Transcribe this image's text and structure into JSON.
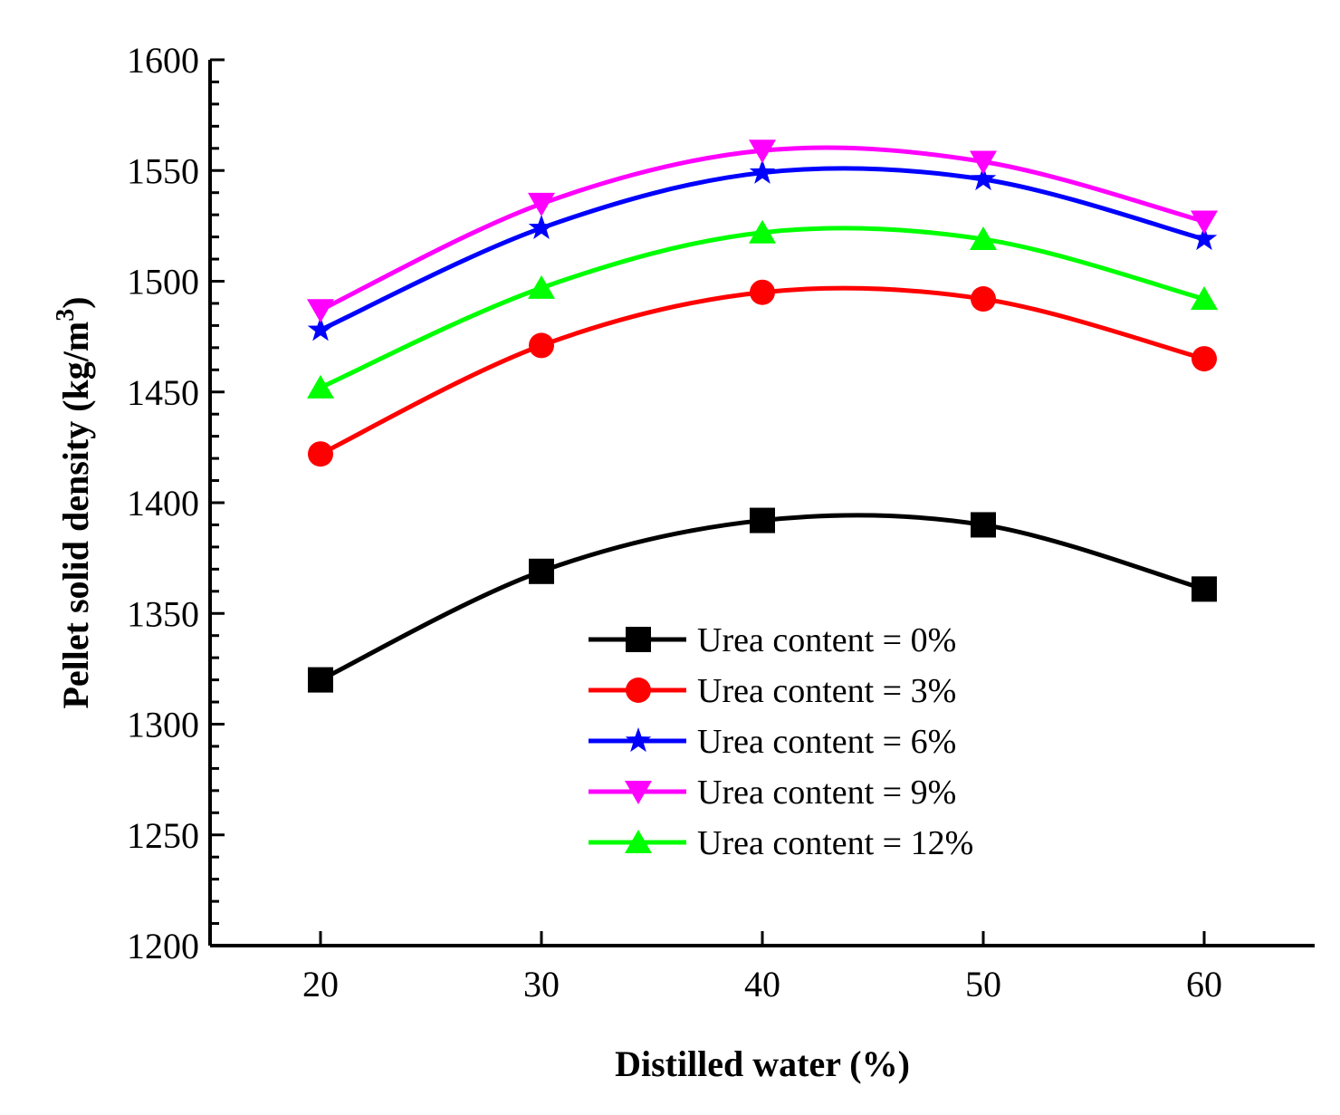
{
  "chart_data": {
    "type": "line",
    "title": "",
    "xlabel": "Distilled water (%)",
    "ylabel_main": "Pellet solid density (kg/m",
    "ylabel_sup": "3",
    "ylabel_close": ")",
    "xlim": [
      15,
      65
    ],
    "ylim": [
      1200,
      1600
    ],
    "xticks": [
      20,
      30,
      40,
      50,
      60
    ],
    "yticks": [
      1200,
      1250,
      1300,
      1350,
      1400,
      1450,
      1500,
      1550,
      1600
    ],
    "x": [
      20,
      30,
      40,
      50,
      60
    ],
    "legend_position": "lower-right",
    "series": [
      {
        "name": "Urea content = 0%",
        "values": [
          1320,
          1369,
          1392,
          1390,
          1361
        ],
        "color": "#000000",
        "marker": "square"
      },
      {
        "name": "Urea content = 3%",
        "values": [
          1422,
          1471,
          1495,
          1492,
          1465
        ],
        "color": "#ff0000",
        "marker": "circle"
      },
      {
        "name": "Urea content = 6%",
        "values": [
          1478,
          1524,
          1549,
          1546,
          1519
        ],
        "color": "#0000ff",
        "marker": "star"
      },
      {
        "name": "Urea content = 9%",
        "values": [
          1487,
          1535,
          1559,
          1554,
          1527
        ],
        "color": "#ff00ff",
        "marker": "triangle-down"
      },
      {
        "name": "Urea content = 12%",
        "values": [
          1452,
          1497,
          1522,
          1519,
          1492
        ],
        "color": "#00ff00",
        "marker": "triangle-up"
      }
    ]
  }
}
